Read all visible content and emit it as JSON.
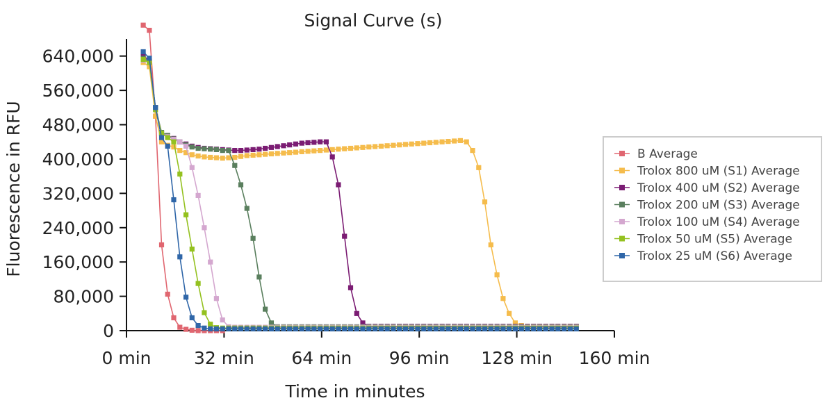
{
  "chart_data": {
    "type": "line",
    "title": "Signal Curve (s)",
    "xlabel": "Time in minutes",
    "ylabel": "Fluorescence in RFU",
    "xlim": [
      0,
      160
    ],
    "ylim": [
      0,
      680000
    ],
    "x_ticks": [
      0,
      32,
      64,
      96,
      128,
      160
    ],
    "x_tick_labels": [
      "0 min",
      "32 min",
      "64 min",
      "96 min",
      "128 min",
      "160 min"
    ],
    "y_ticks": [
      0,
      80000,
      160000,
      240000,
      320000,
      400000,
      480000,
      560000,
      640000
    ],
    "y_tick_labels": [
      "0",
      "80,000",
      "160,000",
      "240,000",
      "320,000",
      "400,000",
      "480,000",
      "560,000",
      "640,000"
    ],
    "grid": false,
    "legend_position": "right",
    "x_step": 2,
    "x_start": 5.5,
    "series": [
      {
        "name": "B Average",
        "color": "#e06670",
        "values": [
          712000,
          700000,
          500000,
          200000,
          85000,
          30000,
          8000,
          3000,
          1000,
          0,
          0,
          0,
          0,
          0
        ]
      },
      {
        "name": "Trolox 800 uM (S1) Average",
        "color": "#f5bc4c",
        "values": [
          625000,
          615000,
          500000,
          440000,
          432000,
          428000,
          420000,
          415000,
          410000,
          407000,
          405000,
          404000,
          403000,
          402000,
          403000,
          404000,
          406000,
          408000,
          409000,
          410000,
          411000,
          412000,
          413000,
          414000,
          415000,
          416000,
          417000,
          418000,
          419000,
          420000,
          421000,
          422000,
          423000,
          424000,
          425000,
          426000,
          427000,
          428000,
          429000,
          430000,
          431000,
          432000,
          433000,
          434000,
          435000,
          436000,
          437000,
          438000,
          439000,
          440000,
          441000,
          442000,
          443000,
          440000,
          420000,
          380000,
          300000,
          200000,
          130000,
          75000,
          40000,
          18000,
          12000,
          10000,
          10000,
          10000,
          10000,
          10000,
          10000,
          10000,
          10000,
          10000
        ],
        "note_hidden": ""
      },
      {
        "name": "Trolox 400 uM (S2) Average",
        "color": "#7b1c73",
        "values": [
          640000,
          630000,
          520000,
          460000,
          455000,
          448000,
          440000,
          435000,
          430000,
          427000,
          425000,
          424000,
          423000,
          422000,
          421000,
          420000,
          420000,
          421000,
          422000,
          423000,
          425000,
          427000,
          429000,
          431000,
          433000,
          435000,
          437000,
          438000,
          439000,
          440000,
          440000,
          405000,
          340000,
          220000,
          100000,
          40000,
          18000,
          10000,
          10000,
          10000,
          10000,
          10000,
          10000,
          10000,
          10000,
          10000,
          10000,
          10000,
          10000,
          10000,
          10000,
          10000,
          10000,
          10000,
          10000,
          10000,
          10000,
          10000,
          10000,
          10000,
          10000,
          10000,
          10000,
          10000,
          10000,
          10000,
          10000,
          10000,
          10000,
          10000,
          10000,
          10000
        ]
      },
      {
        "name": "Trolox 200 uM (S3) Average",
        "color": "#5a7f5e",
        "values": [
          635000,
          628000,
          520000,
          462000,
          455000,
          447000,
          440000,
          433000,
          428000,
          425000,
          424000,
          423000,
          422000,
          420000,
          420000,
          385000,
          340000,
          285000,
          215000,
          125000,
          50000,
          18000,
          9000,
          9000,
          9000,
          9000,
          9000,
          9000,
          9000,
          9000,
          9000,
          9000,
          9000,
          9000,
          9000,
          9000,
          9000,
          9000,
          9000,
          9000,
          9000,
          9000,
          9000,
          9000,
          9000,
          9000,
          9000,
          9000,
          9000,
          9000,
          9000,
          9000,
          9000,
          9000,
          9000,
          9000,
          9000,
          9000,
          9000,
          9000,
          9000,
          9000,
          9000,
          9000,
          9000,
          9000,
          9000,
          9000,
          9000,
          9000,
          9000,
          9000
        ]
      },
      {
        "name": "Trolox 100 uM (S4) Average",
        "color": "#d4a7cf",
        "values": [
          630000,
          625000,
          515000,
          460000,
          452000,
          446000,
          440000,
          430000,
          380000,
          315000,
          240000,
          160000,
          75000,
          25000,
          9000,
          8000,
          8000,
          8000,
          8000,
          8000,
          8000,
          8000,
          8000,
          8000,
          8000,
          8000,
          8000,
          8000,
          8000,
          8000,
          8000,
          8000,
          8000,
          8000,
          8000,
          8000,
          8000,
          8000,
          8000,
          8000,
          8000,
          8000,
          8000,
          8000,
          8000,
          8000,
          8000,
          8000,
          8000,
          8000,
          8000,
          8000,
          8000,
          8000,
          8000,
          8000,
          8000,
          8000,
          8000,
          8000,
          8000,
          8000,
          8000,
          8000,
          8000,
          8000,
          8000,
          8000,
          8000,
          8000,
          8000,
          8000
        ]
      },
      {
        "name": "Trolox 50 uM (S5) Average",
        "color": "#94c11f",
        "values": [
          632000,
          625000,
          515000,
          460000,
          450000,
          440000,
          365000,
          270000,
          190000,
          110000,
          42000,
          15000,
          7000,
          6000,
          6000,
          6000,
          6000,
          6000,
          6000,
          6000,
          6000,
          6000,
          6000,
          6000,
          6000,
          6000,
          6000,
          6000,
          6000,
          6000,
          6000,
          6000,
          6000,
          6000,
          6000,
          6000,
          6000,
          6000,
          6000,
          6000,
          6000,
          6000,
          6000,
          6000,
          6000,
          6000,
          6000,
          6000,
          6000,
          6000,
          6000,
          6000,
          6000,
          6000,
          6000,
          6000,
          6000,
          6000,
          6000,
          6000,
          6000,
          6000,
          6000,
          6000,
          6000,
          6000,
          6000,
          6000,
          6000,
          6000,
          6000,
          6000
        ]
      },
      {
        "name": "Trolox 25 uM (S6) Average",
        "color": "#2f66a8",
        "values": [
          650000,
          635000,
          520000,
          450000,
          430000,
          305000,
          172000,
          78000,
          30000,
          12000,
          6000,
          4000,
          4000,
          4000,
          4000,
          4000,
          4000,
          4000,
          4000,
          4000,
          4000,
          4000,
          4000,
          4000,
          4000,
          4000,
          4000,
          4000,
          4000,
          4000,
          4000,
          4000,
          4000,
          4000,
          4000,
          4000,
          4000,
          4000,
          4000,
          4000,
          4000,
          4000,
          4000,
          4000,
          4000,
          4000,
          4000,
          4000,
          4000,
          4000,
          4000,
          4000,
          4000,
          4000,
          4000,
          4000,
          4000,
          4000,
          4000,
          4000,
          4000,
          4000,
          4000,
          4000,
          4000,
          4000,
          4000,
          4000,
          4000,
          4000,
          4000,
          4000
        ]
      }
    ]
  }
}
